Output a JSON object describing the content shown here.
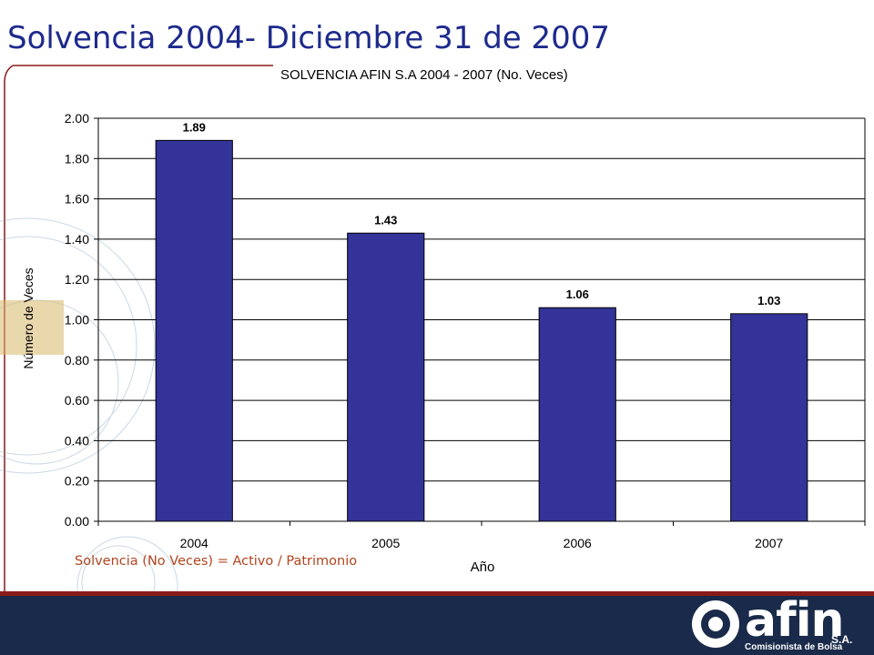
{
  "slide": {
    "title": "Solvencia 2004- Diciembre 31 de 2007",
    "footnote": "Solvencia (No Veces) = Activo / Patrimonio",
    "logo": {
      "name": "afin",
      "suffix": "S.A.",
      "subtitle": "Comisionista de Bolsa"
    }
  },
  "colors": {
    "title": "#1d2a8c",
    "bar": "#333399",
    "footnote": "#b0441e",
    "footer": "#1a2a4a",
    "footer_accent": "#8b1a1a"
  },
  "chart_data": {
    "type": "bar",
    "title": "SOLVENCIA  AFIN S.A 2004 - 2007 (No. Veces)",
    "xlabel": "Año",
    "ylabel": "Número de Veces",
    "categories": [
      "2004",
      "2005",
      "2006",
      "2007"
    ],
    "values": [
      1.89,
      1.43,
      1.06,
      1.03
    ],
    "data_labels": [
      "1.89",
      "1.43",
      "1.06",
      "1.03"
    ],
    "ylim": [
      0,
      2.0
    ],
    "yticks": [
      "0.00",
      "0.20",
      "0.40",
      "0.60",
      "0.80",
      "1.00",
      "1.20",
      "1.40",
      "1.60",
      "1.80",
      "2.00"
    ],
    "grid": true,
    "legend": "none"
  }
}
